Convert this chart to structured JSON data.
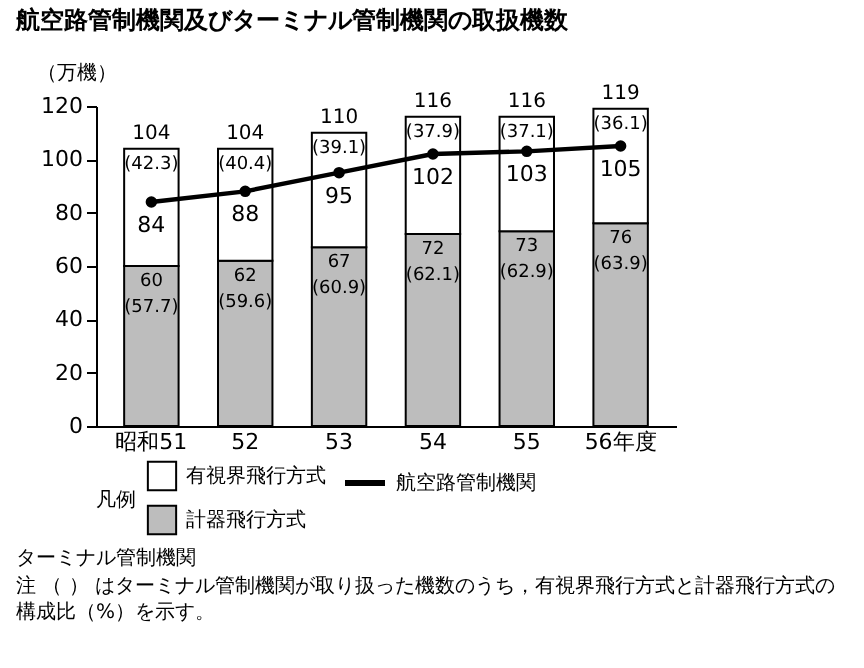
{
  "chart_data": {
    "type": "bar",
    "title": "航空路管制機関及びターミナル管制機関の取扱機数",
    "ylabel": "（万機）",
    "legend_title": "凡例",
    "categories": [
      "昭和51",
      "52",
      "53",
      "54",
      "55",
      "56年度"
    ],
    "stacked": true,
    "series": [
      {
        "name": "計器飛行方式",
        "color": "#bdbdbd",
        "values": [
          60,
          62,
          67,
          72,
          73,
          76
        ],
        "value_labels": [
          "60",
          "62",
          "67",
          "72",
          "73",
          "76"
        ]
      },
      {
        "name": "有視界飛行方式",
        "color": "#ffffff",
        "values": [
          44,
          42,
          43,
          44,
          43,
          43
        ]
      },
      {
        "name": "航空路管制機関",
        "type": "line",
        "color": "#000000",
        "marker": "circle",
        "values": [
          84,
          88,
          95,
          102,
          103,
          105
        ],
        "value_labels": [
          "84",
          "88",
          "95",
          "102",
          "103",
          "105"
        ]
      }
    ],
    "totals": [
      "104",
      "104",
      "110",
      "116",
      "116",
      "119"
    ],
    "annotations": [
      {
        "text": "(42.3)",
        "x": "昭和51",
        "y": 104
      },
      {
        "text": "(40.4)",
        "x": "52",
        "y": 104
      },
      {
        "text": "(39.1)",
        "x": "53",
        "y": 110
      },
      {
        "text": "(37.9)",
        "x": "54",
        "y": 116
      },
      {
        "text": "(37.1)",
        "x": "55",
        "y": 116
      },
      {
        "text": "(36.1)",
        "x": "56年度",
        "y": 119
      },
      {
        "text": "(57.7)",
        "x": "昭和51",
        "y": 60
      },
      {
        "text": "(59.6)",
        "x": "52",
        "y": 62
      },
      {
        "text": "(60.9)",
        "x": "53",
        "y": 67
      },
      {
        "text": "(62.1)",
        "x": "54",
        "y": 72
      },
      {
        "text": "(62.9)",
        "x": "55",
        "y": 73
      },
      {
        "text": "(63.9)",
        "x": "56年度",
        "y": 76
      },
      "ターミナル管制機関",
      "注 （ ） はターミナル管制機関が取り扱った機数のうち，有視界飛行方式と計器飛行方式の構成比（%）を示す。"
    ],
    "ylim": [
      0,
      120
    ],
    "yticks": [
      0,
      20,
      40,
      60,
      80,
      100,
      120
    ],
    "grid": false,
    "legend": "bottom"
  }
}
